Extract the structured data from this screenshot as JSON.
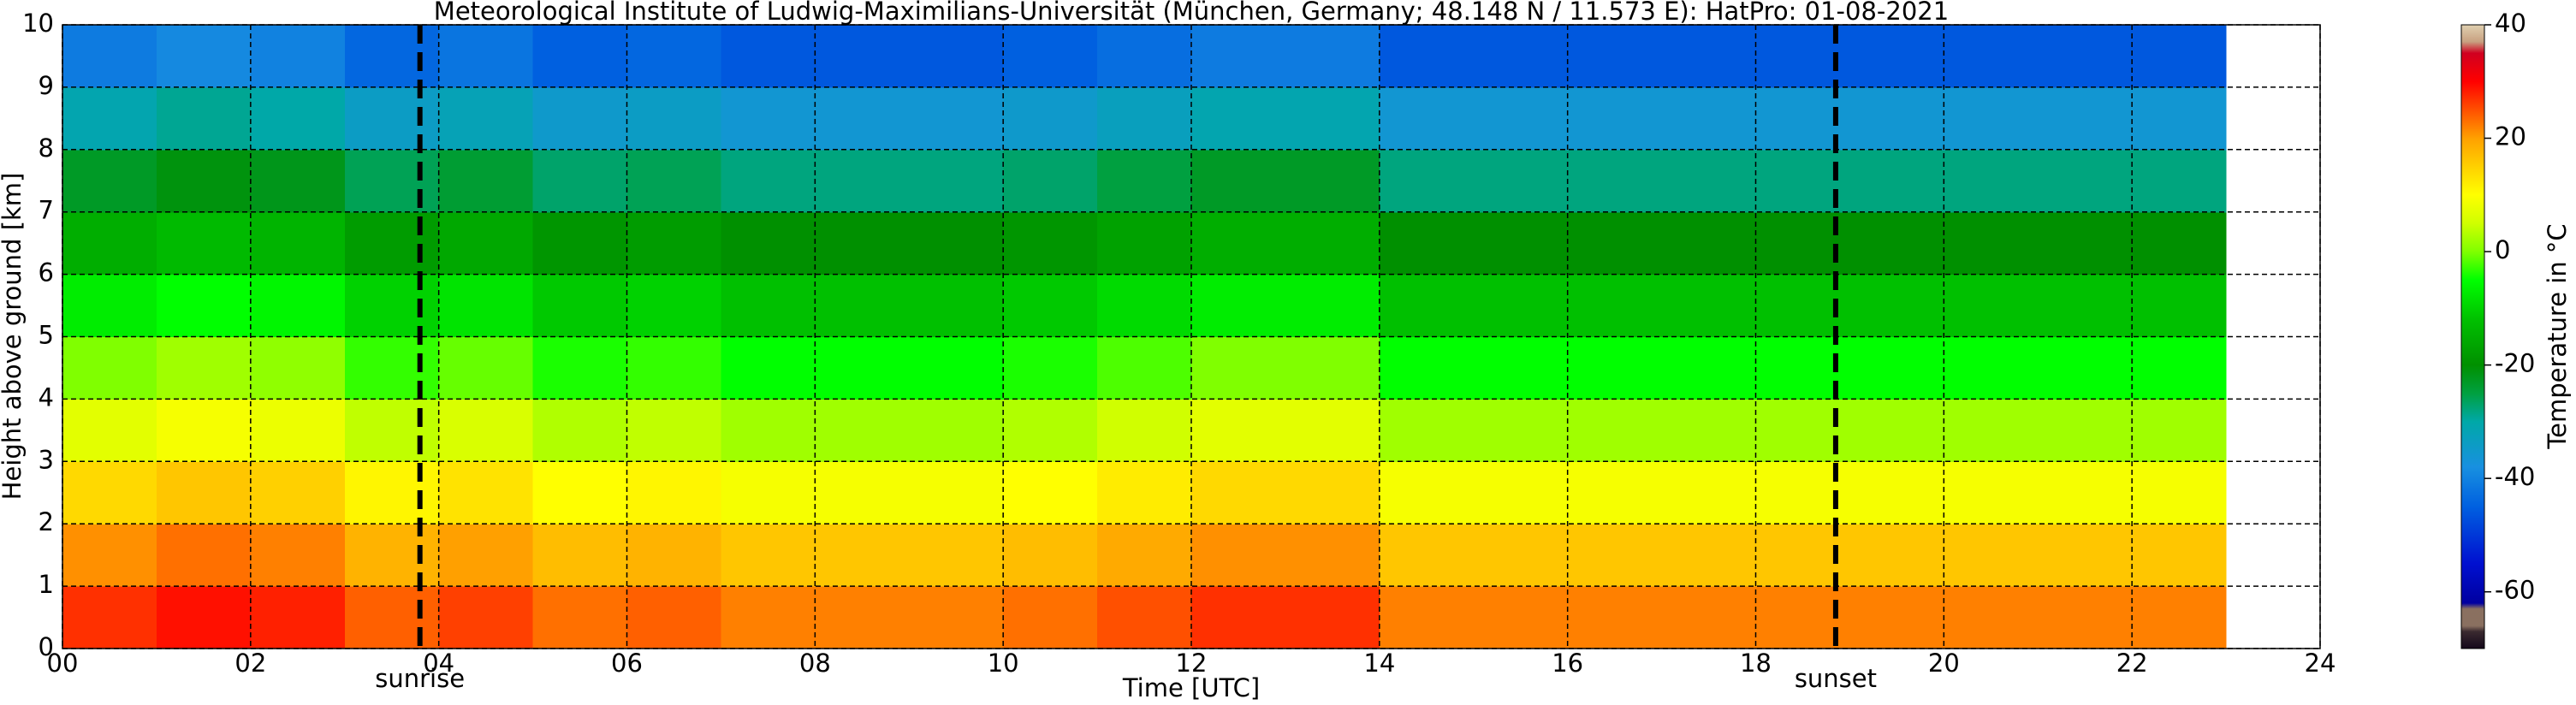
{
  "chart_data": {
    "type": "heatmap",
    "title": "Meteorological Institute of Ludwig-Maximilians-Universität (München, Germany; 48.148 N / 11.573 E):    HatPro: 01-08-2021",
    "xlabel": "Time [UTC]",
    "ylabel": "Height above ground [km]",
    "colorbar_label": "Temperature in °C",
    "xlim": [
      0,
      24
    ],
    "ylim": [
      0,
      10
    ],
    "xticks": [
      {
        "value": 0,
        "label": "00"
      },
      {
        "value": 2,
        "label": "02"
      },
      {
        "value": 4,
        "label": "04"
      },
      {
        "value": 6,
        "label": "06"
      },
      {
        "value": 8,
        "label": "08"
      },
      10,
      12,
      14,
      16,
      18,
      20,
      22,
      24
    ],
    "yticks": [
      0,
      1,
      2,
      3,
      4,
      5,
      6,
      7,
      8,
      9,
      10
    ],
    "grid": true,
    "clim": [
      -70,
      40
    ],
    "cticks": [
      -60,
      -40,
      -20,
      0,
      20,
      40
    ],
    "colormap": [
      {
        "value": -70,
        "color": "#14081a"
      },
      {
        "value": -67,
        "color": "#3a2a30"
      },
      {
        "value": -66,
        "color": "#8a7060"
      },
      {
        "value": -63,
        "color": "#8a7060"
      },
      {
        "value": -62,
        "color": "#0000a0"
      },
      {
        "value": -55,
        "color": "#0010d0"
      },
      {
        "value": -45,
        "color": "#0060e0"
      },
      {
        "value": -38,
        "color": "#1890e0"
      },
      {
        "value": -30,
        "color": "#00a8a8"
      },
      {
        "value": -25,
        "color": "#00a040"
      },
      {
        "value": -20,
        "color": "#009000"
      },
      {
        "value": -12,
        "color": "#00c000"
      },
      {
        "value": -5,
        "color": "#00ff00"
      },
      {
        "value": 0,
        "color": "#80ff00"
      },
      {
        "value": 5,
        "color": "#d0ff00"
      },
      {
        "value": 10,
        "color": "#ffff00"
      },
      {
        "value": 15,
        "color": "#ffd000"
      },
      {
        "value": 20,
        "color": "#ffa000"
      },
      {
        "value": 25,
        "color": "#ff5000"
      },
      {
        "value": 30,
        "color": "#ff0000"
      },
      {
        "value": 35,
        "color": "#d00020"
      },
      {
        "value": 37,
        "color": "#c8a080"
      },
      {
        "value": 40,
        "color": "#e0d0b0"
      }
    ],
    "xbins": [
      0,
      1,
      2,
      3,
      4,
      5,
      6,
      7,
      8,
      9,
      10,
      11,
      12,
      13,
      14,
      15,
      16,
      17,
      18,
      19,
      20,
      21,
      22,
      23
    ],
    "ybins": [
      0,
      1,
      2,
      3,
      4,
      5,
      6,
      7,
      8,
      9,
      10
    ],
    "values": [
      [
        27,
        29,
        28,
        24,
        26,
        23,
        24,
        22,
        22,
        22,
        23,
        25,
        27,
        27,
        22,
        22,
        22,
        22,
        22,
        22,
        22,
        22,
        22
      ],
      [
        21,
        23,
        22,
        18,
        20,
        17,
        18,
        16,
        16,
        16,
        17,
        19,
        21,
        21,
        16,
        16,
        16,
        16,
        16,
        16,
        16,
        16,
        16
      ],
      [
        14,
        16,
        15,
        11,
        13,
        10,
        11,
        9,
        9,
        9,
        10,
        12,
        14,
        14,
        9,
        9,
        9,
        9,
        9,
        9,
        9,
        9,
        9
      ],
      [
        7,
        9,
        8,
        4,
        6,
        3,
        4,
        2,
        2,
        2,
        3,
        5,
        7,
        7,
        2,
        2,
        2,
        2,
        2,
        2,
        2,
        2,
        2
      ],
      [
        0,
        2,
        1,
        -3,
        -1,
        -4,
        -3,
        -5,
        -5,
        -5,
        -4,
        -2,
        0,
        0,
        -5,
        -5,
        -5,
        -5,
        -5,
        -5,
        -5,
        -5,
        -5
      ],
      [
        -7,
        -5,
        -6,
        -10,
        -8,
        -11,
        -10,
        -12,
        -12,
        -12,
        -11,
        -9,
        -7,
        -7,
        -12,
        -12,
        -12,
        -12,
        -12,
        -12,
        -12,
        -12,
        -12
      ],
      [
        -15,
        -13,
        -14,
        -18,
        -16,
        -19,
        -18,
        -20,
        -20,
        -20,
        -19,
        -17,
        -15,
        -15,
        -20,
        -20,
        -20,
        -20,
        -20,
        -20,
        -20,
        -20,
        -20
      ],
      [
        -23,
        -21,
        -22,
        -26,
        -24,
        -27,
        -26,
        -28,
        -28,
        -28,
        -27,
        -25,
        -23,
        -23,
        -28,
        -28,
        -28,
        -28,
        -28,
        -28,
        -28,
        -28,
        -28
      ],
      [
        -31,
        -29,
        -30,
        -34,
        -32,
        -35,
        -34,
        -36,
        -36,
        -36,
        -35,
        -33,
        -31,
        -31,
        -36,
        -36,
        -36,
        -36,
        -36,
        -36,
        -36,
        -36,
        -36
      ],
      [
        -41,
        -39,
        -40,
        -44,
        -42,
        -45,
        -44,
        -46,
        -46,
        -46,
        -45,
        -43,
        -41,
        -41,
        -46,
        -46,
        -46,
        -46,
        -46,
        -46,
        -46,
        -46,
        -46
      ]
    ],
    "markers": [
      {
        "x": 3.8,
        "label": "sunrise"
      },
      {
        "x": 18.85,
        "label": "sunset"
      }
    ]
  }
}
